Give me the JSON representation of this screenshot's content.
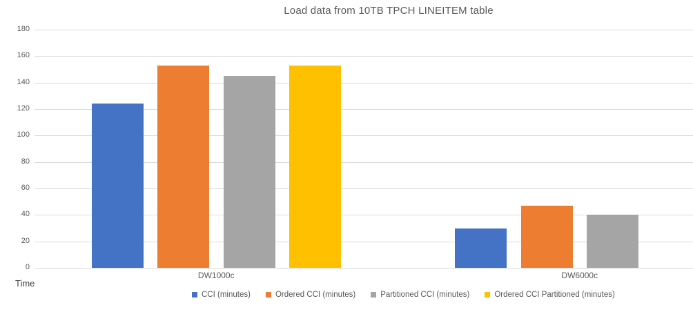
{
  "chart_data": {
    "type": "bar",
    "title": "Load data from 10TB TPCH LINEITEM table",
    "categories": [
      "DW1000c",
      "DW6000c"
    ],
    "series": [
      {
        "name": "CCI (minutes)",
        "color": "#4472C4",
        "values": [
          124,
          30
        ]
      },
      {
        "name": "Ordered CCI (minutes)",
        "color": "#ED7D31",
        "values": [
          153,
          47
        ]
      },
      {
        "name": "Partitioned CCI (minutes)",
        "color": "#A5A5A5",
        "values": [
          145,
          40
        ]
      },
      {
        "name": "Ordered CCI Partitioned (minutes)",
        "color": "#FFC000",
        "values": [
          153,
          null
        ]
      }
    ],
    "xlabel": "",
    "ylabel": "Time",
    "ylim": [
      0,
      180
    ],
    "ytick_step": 20,
    "grid": true,
    "gridline_color": "#D9D9D9",
    "legend_position": "bottom"
  }
}
